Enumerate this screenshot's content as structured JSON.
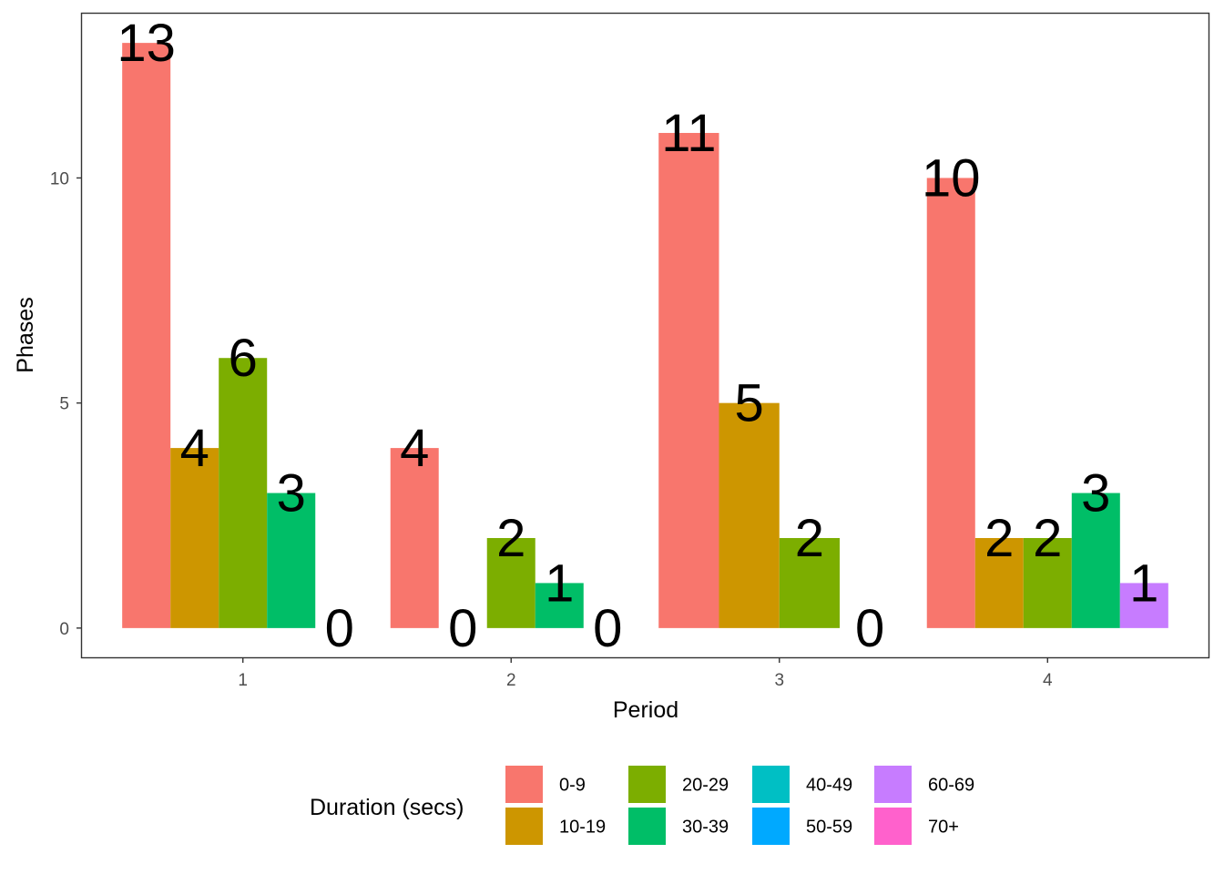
{
  "chart_data": {
    "type": "bar",
    "xlabel": "Period",
    "ylabel": "Phases",
    "categories": [
      "1",
      "2",
      "3",
      "4"
    ],
    "y_ticks": [
      0,
      5,
      10
    ],
    "ylim": [
      -0.65,
      13.65
    ],
    "grid": false,
    "legend": {
      "title": "Duration (secs)",
      "position": "bottom",
      "entries": [
        {
          "name": "0-9",
          "color": "#F8766D"
        },
        {
          "name": "10-19",
          "color": "#CD9600"
        },
        {
          "name": "20-29",
          "color": "#7CAE00"
        },
        {
          "name": "30-39",
          "color": "#00BE67"
        },
        {
          "name": "40-49",
          "color": "#00BFC4"
        },
        {
          "name": "50-59",
          "color": "#00A9FF"
        },
        {
          "name": "60-69",
          "color": "#C77CFF"
        },
        {
          "name": "70+",
          "color": "#FF61CC"
        }
      ]
    },
    "series": [
      {
        "period": "1",
        "bars": [
          {
            "duration": "0-9",
            "value": 13
          },
          {
            "duration": "10-19",
            "value": 4
          },
          {
            "duration": "20-29",
            "value": 6
          },
          {
            "duration": "30-39",
            "value": 3
          },
          {
            "duration": "",
            "value": 0
          }
        ]
      },
      {
        "period": "2",
        "bars": [
          {
            "duration": "0-9",
            "value": 4
          },
          {
            "duration": "",
            "value": 0
          },
          {
            "duration": "20-29",
            "value": 2
          },
          {
            "duration": "30-39",
            "value": 1
          },
          {
            "duration": "",
            "value": 0
          }
        ]
      },
      {
        "period": "3",
        "bars": [
          {
            "duration": "0-9",
            "value": 11
          },
          {
            "duration": "10-19",
            "value": 5
          },
          {
            "duration": "20-29",
            "value": 2
          },
          {
            "duration": "",
            "value": 0
          }
        ]
      },
      {
        "period": "4",
        "bars": [
          {
            "duration": "0-9",
            "value": 10
          },
          {
            "duration": "10-19",
            "value": 2
          },
          {
            "duration": "20-29",
            "value": 2
          },
          {
            "duration": "30-39",
            "value": 3
          },
          {
            "duration": "60-69",
            "value": 1
          }
        ]
      }
    ]
  }
}
